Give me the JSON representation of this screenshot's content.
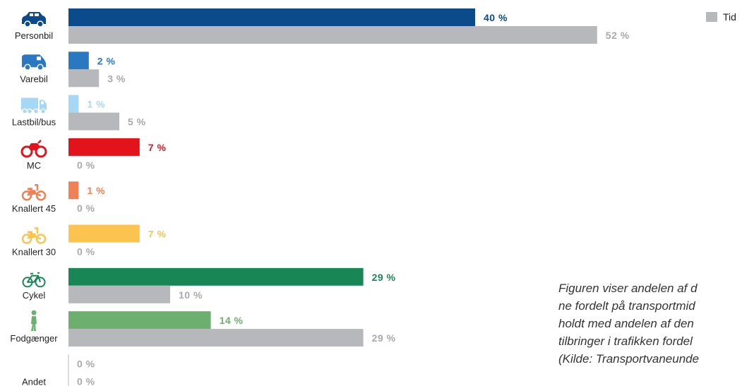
{
  "chart_data": {
    "type": "bar",
    "orientation": "horizontal",
    "categories": [
      "Personbil",
      "Varebil",
      "Lastbil/bus",
      "MC",
      "Knallert 45",
      "Knallert 30",
      "Cykel",
      "Fodgænger",
      "Andet"
    ],
    "icons": [
      "car-icon",
      "van-icon",
      "truck-icon",
      "motorcycle-icon",
      "moped-icon",
      "moped-icon",
      "bicycle-icon",
      "pedestrian-icon",
      ""
    ],
    "series": [
      {
        "values": [
          40,
          2,
          1,
          7,
          1,
          7,
          29,
          14,
          0
        ],
        "colors": [
          "#0b4a8b",
          "#2a78c2",
          "#a6d8f5",
          "#e2131b",
          "#f08156",
          "#fcc44f",
          "#198656",
          "#6daf6e",
          "#c9cacd"
        ]
      },
      {
        "name": "Tid",
        "values": [
          52,
          3,
          5,
          0,
          0,
          0,
          10,
          29,
          0
        ],
        "color": "#b7b8bc"
      }
    ],
    "value_suffix": " %",
    "legend": {
      "label": "Tid",
      "position": "top-right"
    },
    "grid": false
  },
  "caption_lines": [
    "Figuren viser andelen af d",
    "ne fordelt på transportmid",
    "holdt med andelen af den",
    "tilbringer i trafikken fordel",
    "(Kilde: Transportvaneunde"
  ],
  "colors": {
    "label_text": "#222222",
    "grey_label": "#a8a9ad",
    "axis": "#cfd0d2"
  }
}
